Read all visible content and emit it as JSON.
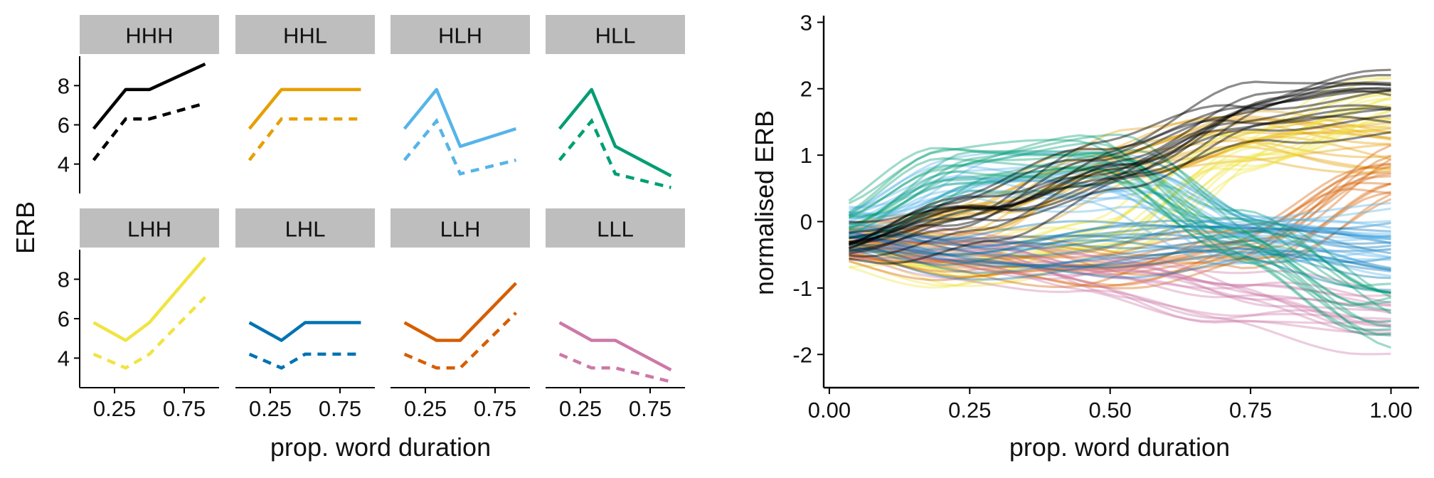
{
  "colors": {
    "HHH": "#000000",
    "HHL": "#E69F00",
    "HLH": "#56B4E9",
    "HLL": "#009E73",
    "LHH": "#F0E442",
    "LHL": "#0072B2",
    "LLH": "#D55E00",
    "LLL": "#CC79A7",
    "strip": "#BEBEBE"
  },
  "chart_data": [
    {
      "type": "line",
      "layout": "facet grid 2x4",
      "ylabel": "ERB",
      "xlabel": "prop. word duration",
      "xticks": [
        0.25,
        0.75
      ],
      "yticks": [
        4,
        6,
        8
      ],
      "xlim": [
        0.0,
        1.0
      ],
      "ylim": [
        2.5,
        9.5
      ],
      "x": [
        0.1,
        0.33,
        0.5,
        0.9
      ],
      "panels": [
        {
          "label": "HHH",
          "solid": [
            5.8,
            7.8,
            7.8,
            9.1
          ],
          "dashed": [
            4.2,
            6.3,
            6.3,
            7.1
          ]
        },
        {
          "label": "HHL",
          "solid": [
            5.8,
            7.8,
            7.8,
            7.8
          ],
          "dashed": [
            4.2,
            6.3,
            6.3,
            6.3
          ]
        },
        {
          "label": "HLH",
          "solid": [
            5.8,
            7.8,
            4.9,
            5.8
          ],
          "dashed": [
            4.2,
            6.2,
            3.5,
            4.2
          ]
        },
        {
          "label": "HLL",
          "solid": [
            5.8,
            7.8,
            4.9,
            3.4
          ],
          "dashed": [
            4.2,
            6.2,
            3.5,
            2.8
          ]
        },
        {
          "label": "LHH",
          "solid": [
            5.8,
            4.9,
            5.8,
            9.1
          ],
          "dashed": [
            4.2,
            3.5,
            4.2,
            7.1
          ]
        },
        {
          "label": "LHL",
          "solid": [
            5.8,
            4.9,
            5.8,
            5.8
          ],
          "dashed": [
            4.2,
            3.5,
            4.2,
            4.2
          ]
        },
        {
          "label": "LLH",
          "solid": [
            5.8,
            4.9,
            4.9,
            7.8
          ],
          "dashed": [
            4.2,
            3.5,
            3.5,
            6.3
          ]
        },
        {
          "label": "LLL",
          "solid": [
            5.8,
            4.9,
            4.9,
            3.4
          ],
          "dashed": [
            4.2,
            3.5,
            3.5,
            2.8
          ]
        }
      ]
    },
    {
      "type": "line",
      "ylabel": "normalised ERB",
      "xlabel": "prop. word duration",
      "xticks": [
        "0.00",
        "0.25",
        "0.50",
        "0.75",
        "1.00"
      ],
      "yticks": [
        "-2",
        "-1",
        "0",
        "1",
        "2",
        "3"
      ],
      "xlim": [
        -0.01,
        1.05
      ],
      "ylim": [
        -2.5,
        3.1
      ],
      "grid": false,
      "legend": "none",
      "series_note_x": [
        0.035,
        0.25,
        0.5,
        0.75,
        1.0
      ],
      "series": [
        {
          "group": "HHH",
          "count": 16,
          "x": [
            0.035,
            0.25,
            0.5,
            0.75,
            1.0
          ],
          "y": [
            -0.4,
            0.1,
            0.9,
            1.6,
            1.9
          ]
        },
        {
          "group": "HHL",
          "count": 16,
          "x": [
            0.035,
            0.25,
            0.5,
            0.75,
            1.0
          ],
          "y": [
            -0.3,
            0.1,
            0.9,
            1.3,
            1.2
          ]
        },
        {
          "group": "HLH",
          "count": 16,
          "x": [
            0.035,
            0.25,
            0.5,
            0.75,
            1.0
          ],
          "y": [
            0.0,
            0.6,
            0.6,
            -0.2,
            -0.3
          ]
        },
        {
          "group": "HLL",
          "count": 16,
          "x": [
            0.035,
            0.25,
            0.5,
            0.75,
            1.0
          ],
          "y": [
            -0.1,
            0.8,
            0.9,
            -0.3,
            -1.4
          ]
        },
        {
          "group": "LHH",
          "count": 16,
          "x": [
            0.035,
            0.25,
            0.5,
            0.75,
            1.0
          ],
          "y": [
            -0.4,
            -0.7,
            -0.3,
            1.1,
            1.8
          ]
        },
        {
          "group": "LHL",
          "count": 16,
          "x": [
            0.035,
            0.25,
            0.5,
            0.75,
            1.0
          ],
          "y": [
            -0.3,
            -0.5,
            -0.4,
            -0.3,
            -0.5
          ]
        },
        {
          "group": "LLH",
          "count": 16,
          "x": [
            0.035,
            0.25,
            0.5,
            0.75,
            1.0
          ],
          "y": [
            -0.3,
            -0.5,
            -0.7,
            -0.3,
            0.8
          ]
        },
        {
          "group": "LLL",
          "count": 16,
          "x": [
            0.035,
            0.25,
            0.5,
            0.75,
            1.0
          ],
          "y": [
            -0.3,
            -0.5,
            -0.8,
            -1.2,
            -1.5
          ]
        }
      ]
    }
  ]
}
